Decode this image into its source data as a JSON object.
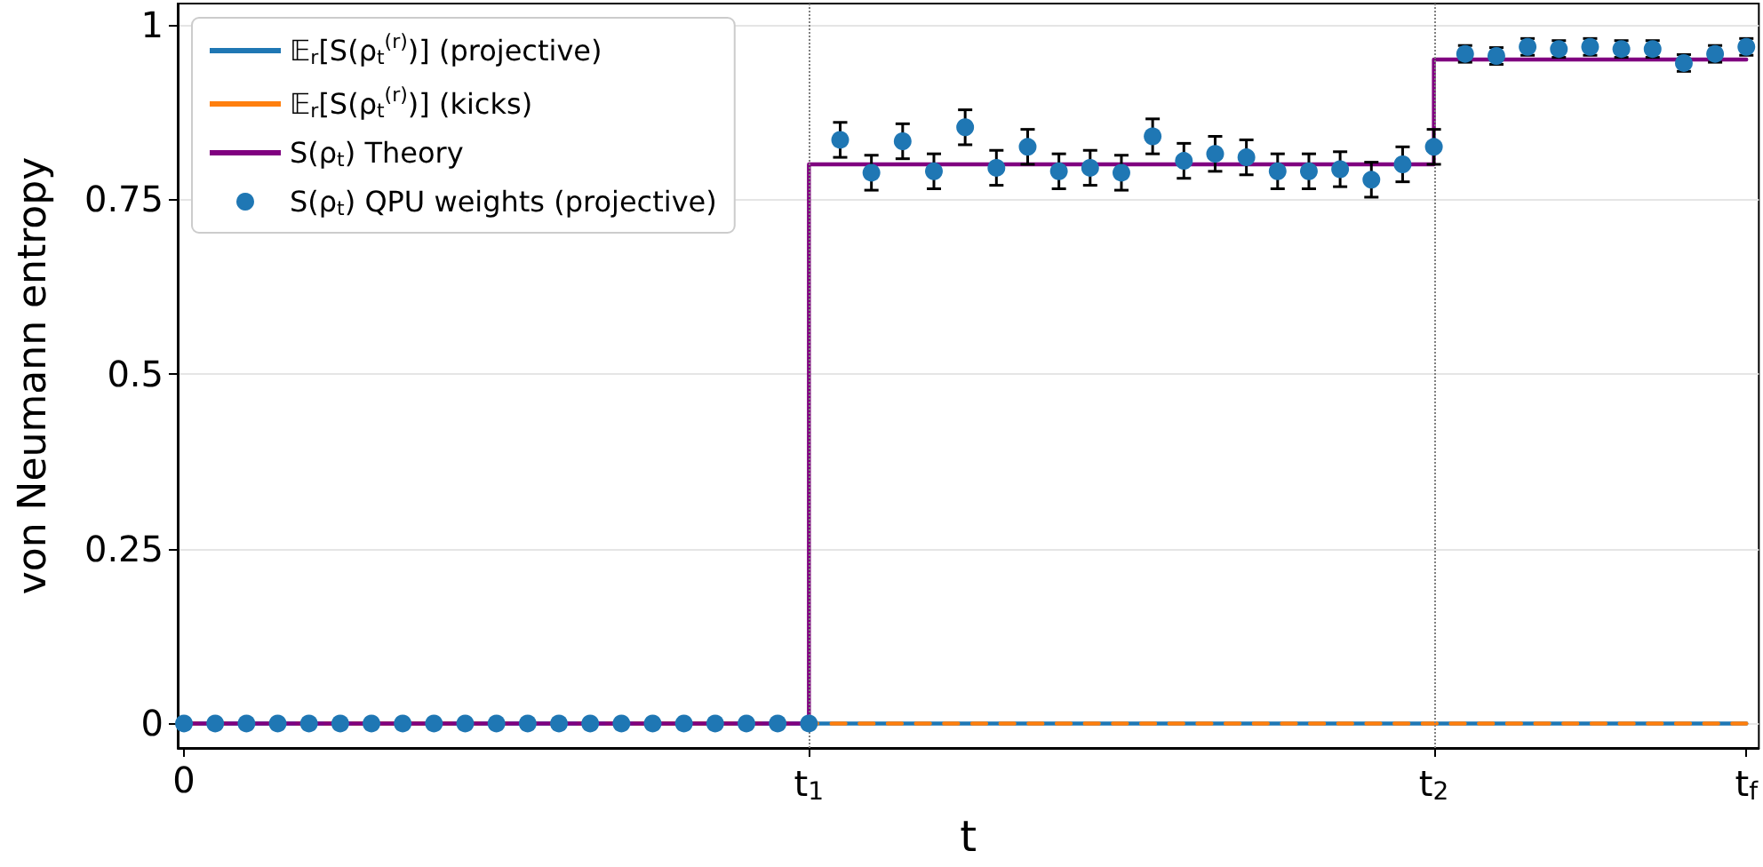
{
  "chart_data": {
    "type": "line",
    "xlabel": "t",
    "ylabel": "von Neumann entropy",
    "xlim": [
      -0.01,
      2.52
    ],
    "ylim": [
      -0.035,
      1.03
    ],
    "xticks": [
      {
        "value": 0,
        "label": "0"
      },
      {
        "value": 1,
        "label": "t$_{1}$"
      },
      {
        "value": 2,
        "label": "t$_{2}$"
      },
      {
        "value": 2.5,
        "label": "t$_{f}$"
      }
    ],
    "yticks": [
      0,
      0.25,
      0.5,
      0.75,
      1
    ],
    "grid": "y",
    "legend": "top left",
    "ref_lines": [
      {
        "axis": "x",
        "value": 1,
        "label": null,
        "color": "#808080",
        "line_style": "dotted"
      },
      {
        "axis": "x",
        "value": 2,
        "label": null,
        "color": "#808080",
        "line_style": "dotted"
      }
    ],
    "series": [
      {
        "name": "𝔼$_{r}$[S(ρ$_{t}$$^{(r)}$)] (projective)",
        "color": "#1f77b4",
        "marker": "none",
        "line_style": "solid",
        "x": [
          0,
          2.5
        ],
        "values": [
          0,
          0
        ]
      },
      {
        "name": "𝔼$_{r}$[S(ρ$_{t}$$^{(r)}$)] (kicks)",
        "color": "#ff7f0e",
        "marker": "none",
        "line_style": "dashed",
        "x": [
          0,
          2.5
        ],
        "values": [
          0,
          0
        ]
      },
      {
        "name": "S(ρ$_{t}$) Theory",
        "color": "#800080",
        "marker": "none",
        "line_style": "solid",
        "x": [
          0,
          1,
          1,
          2,
          2,
          2.5
        ],
        "values": [
          0,
          0,
          0.8,
          0.8,
          0.95,
          0.95
        ]
      },
      {
        "name": "S(ρ$_{t}$) QPU weights (projective)",
        "type": "scatter",
        "color": "#1f77b4",
        "marker": "circle",
        "x": [
          0,
          0.05,
          0.1,
          0.15,
          0.2,
          0.25,
          0.3,
          0.35,
          0.4,
          0.45,
          0.5,
          0.55,
          0.6,
          0.65,
          0.7,
          0.75,
          0.8,
          0.85,
          0.9,
          0.95,
          1.0,
          1.05,
          1.1,
          1.15,
          1.2,
          1.25,
          1.3,
          1.35,
          1.4,
          1.45,
          1.5,
          1.55,
          1.6,
          1.65,
          1.7,
          1.75,
          1.8,
          1.85,
          1.9,
          1.95,
          2.0,
          2.05,
          2.1,
          2.15,
          2.2,
          2.25,
          2.3,
          2.35,
          2.4,
          2.45,
          2.5
        ],
        "values": [
          0,
          0,
          0,
          0,
          0,
          0,
          0,
          0,
          0,
          0,
          0,
          0,
          0,
          0,
          0,
          0,
          0,
          0,
          0,
          0,
          0,
          0.835,
          0.788,
          0.833,
          0.79,
          0.853,
          0.795,
          0.825,
          0.79,
          0.795,
          0.788,
          0.84,
          0.805,
          0.815,
          0.81,
          0.79,
          0.79,
          0.793,
          0.778,
          0.8,
          0.825,
          0.958,
          0.955,
          0.968,
          0.965,
          0.968,
          0.965,
          0.965,
          0.945,
          0.958,
          0.968
        ],
        "errors": [
          null,
          null,
          null,
          null,
          null,
          null,
          null,
          null,
          null,
          null,
          null,
          null,
          null,
          null,
          null,
          null,
          null,
          null,
          null,
          null,
          null,
          0.025,
          0.025,
          0.025,
          0.025,
          0.025,
          0.025,
          0.025,
          0.025,
          0.025,
          0.025,
          0.025,
          0.025,
          0.025,
          0.025,
          0.025,
          0.025,
          0.025,
          0.025,
          0.025,
          0.025,
          0.012,
          0.012,
          0.012,
          0.012,
          0.012,
          0.012,
          0.012,
          0.012,
          0.012,
          0.012
        ]
      }
    ]
  }
}
